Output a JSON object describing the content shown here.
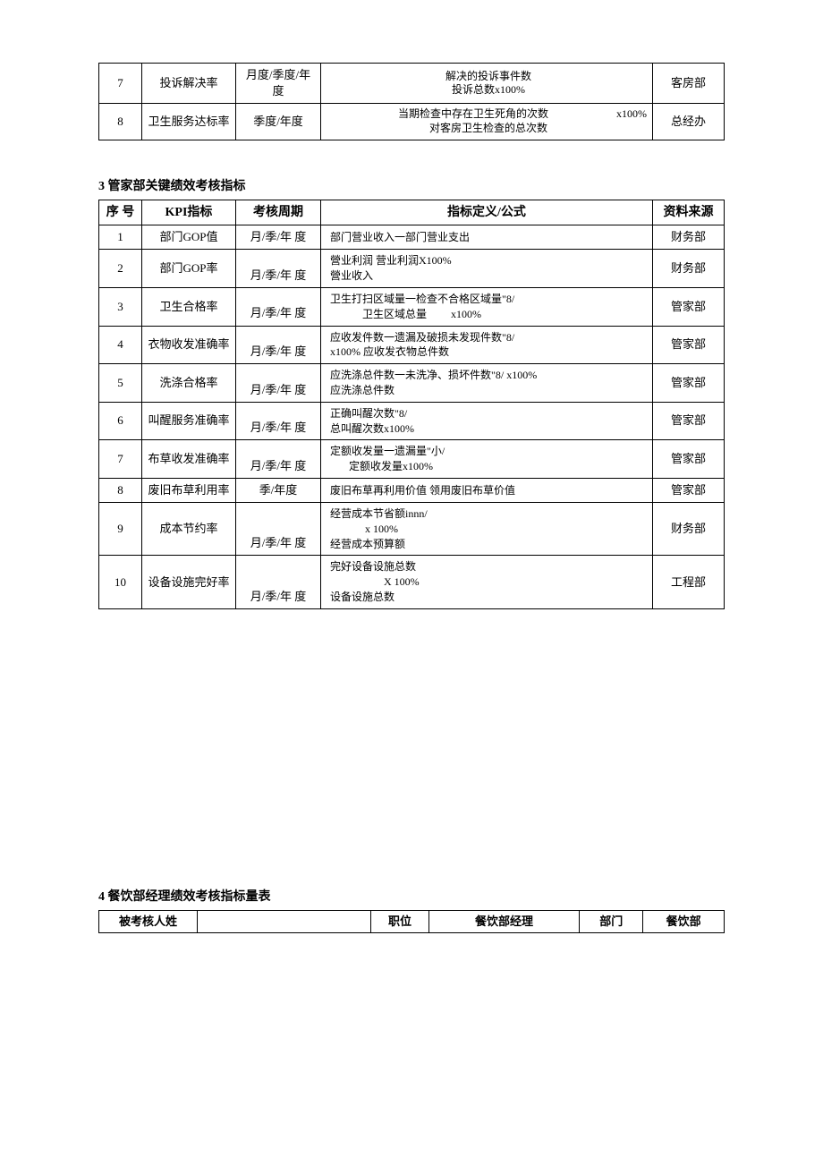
{
  "table1": {
    "rows": [
      {
        "num": "7",
        "kpi": "投诉解决率",
        "period": "月度/季度/年度",
        "formula_top": "解决的投诉事件数",
        "formula_bottom": "投诉总数x100%",
        "source": "客房部"
      },
      {
        "num": "8",
        "kpi": "卫生服务达标率",
        "period": "季度/年度",
        "formula_top": "当期检查中存在卫生死角的次数",
        "formula_mid": "x100%",
        "formula_bottom": "对客房卫生检查的总次数",
        "source": "总经办"
      }
    ]
  },
  "section3": {
    "heading": "3 管家部关键绩效考核指标",
    "headers": {
      "num": "序 号",
      "kpi": "KPI指标",
      "period": "考核周期",
      "formula": "指标定义/公式",
      "source": "资料来源"
    },
    "rows": [
      {
        "num": "1",
        "kpi": "部门GOP值",
        "period": "月/季/年 度",
        "formula": "部门营业收入一部门营业支出",
        "source": "财务部"
      },
      {
        "num": "2",
        "kpi": "部门GOP率",
        "period": "月/季/年 度",
        "formula": "營业利润 营业利润X100%\n營业收入",
        "source": "财务部"
      },
      {
        "num": "3",
        "kpi": "卫生合格率",
        "period": "月/季/年 度",
        "formula": "卫生打扫区域量一检查不合格区域量\"8/\n            卫生区域总量         x100%",
        "source": "管家部"
      },
      {
        "num": "4",
        "kpi": "衣物收发准确率",
        "period": "月/季/年 度",
        "formula": "应收发件数一遗漏及破损未发现件数\"8/\nx100% 应收发衣物总件数",
        "source": "管家部"
      },
      {
        "num": "5",
        "kpi": "洗涤合格率",
        "period": "月/季/年 度",
        "formula": "应洗涤总件数一未洗净、损坏件数\"8/ x100%\n应洗涤总件数",
        "source": "管家部"
      },
      {
        "num": "6",
        "kpi": "叫醒服务准确率",
        "period": "月/季/年 度",
        "formula": "正确叫醒次数\"8/\n总叫醒次数x100%",
        "source": "管家部"
      },
      {
        "num": "7",
        "kpi": "布草收发准确率",
        "period": "月/季/年 度",
        "formula": "定额收发量一遗漏量\"小/\n       定额收发量x100%",
        "source": "管家部"
      },
      {
        "num": "8",
        "kpi": "废旧布草利用率",
        "period": "季/年度",
        "formula": "废旧布草再利用价值 领用废旧布草价值",
        "source": "管家部"
      },
      {
        "num": "9",
        "kpi": "成本节约率",
        "period": "月/季/年 度",
        "formula": "经营成本节省额innn/\n             x 100%\n经营成本预算额",
        "source": "财务部"
      },
      {
        "num": "10",
        "kpi": "设备设施完好率",
        "period": "月/季/年 度",
        "formula": "完好设备设施总数\n                    X 100%\n设备设施总数",
        "source": "工程部"
      }
    ]
  },
  "section4": {
    "heading": "4 餐饮部经理绩效考核指标量表",
    "labels": {
      "name": "被考核人姓",
      "position": "职位",
      "position_val": "餐饮部经理",
      "dept": "部门",
      "dept_val": "餐饮部"
    }
  },
  "style": {
    "background_color": "#ffffff",
    "border_color": "#000000",
    "text_color": "#000000",
    "font_family": "SimSun",
    "body_font_size": 14,
    "cell_font_size": 13,
    "formula_font_size": 12
  }
}
